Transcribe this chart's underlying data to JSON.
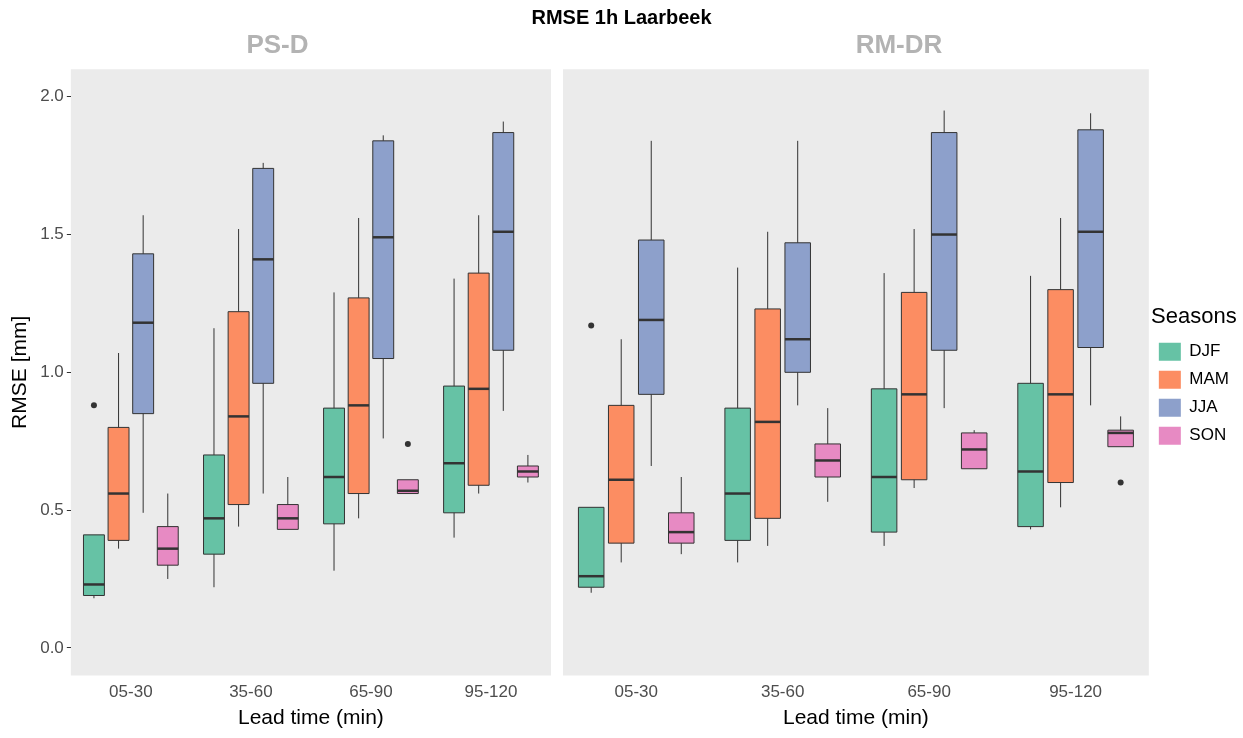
{
  "chart_data": [
    {
      "type": "box",
      "subtitle": "PS-D",
      "xlabel": "Lead time (min)",
      "ylabel": "RMSE [mm]",
      "categories": [
        "05-30",
        "35-60",
        "65-90",
        "95-120"
      ],
      "ylim": [
        -0.1,
        2.1
      ],
      "yticks": [
        {
          "value": 0,
          "label": "0.0"
        },
        {
          "value": 0.5,
          "label": "0.5"
        },
        {
          "value": 1,
          "label": "1.0"
        },
        {
          "value": 1.5,
          "label": "1.5"
        },
        {
          "value": 2,
          "label": "2.0"
        }
      ],
      "grid": false,
      "legend": false,
      "series": [
        {
          "color": "#66c2a5",
          "boxes": [
            {
              "low": 0.18,
              "q1": 0.19,
              "median": 0.23,
              "q3": 0.41,
              "high": 0.41,
              "outliers": [
                0.88
              ]
            },
            {
              "low": 0.22,
              "q1": 0.34,
              "median": 0.47,
              "q3": 0.7,
              "high": 1.16
            },
            {
              "low": 0.28,
              "q1": 0.45,
              "median": 0.62,
              "q3": 0.87,
              "high": 1.29
            },
            {
              "low": 0.4,
              "q1": 0.49,
              "median": 0.67,
              "q3": 0.95,
              "high": 1.34
            }
          ]
        },
        {
          "color": "#fc8d62",
          "boxes": [
            {
              "low": 0.36,
              "q1": 0.39,
              "median": 0.56,
              "q3": 0.8,
              "high": 1.07
            },
            {
              "low": 0.44,
              "q1": 0.52,
              "median": 0.84,
              "q3": 1.22,
              "high": 1.52
            },
            {
              "low": 0.47,
              "q1": 0.56,
              "median": 0.88,
              "q3": 1.27,
              "high": 1.56
            },
            {
              "low": 0.56,
              "q1": 0.59,
              "median": 0.94,
              "q3": 1.36,
              "high": 1.57
            }
          ]
        },
        {
          "color": "#8da0cb",
          "boxes": [
            {
              "low": 0.49,
              "q1": 0.85,
              "median": 1.18,
              "q3": 1.43,
              "high": 1.57
            },
            {
              "low": 0.56,
              "q1": 0.96,
              "median": 1.41,
              "q3": 1.74,
              "high": 1.76
            },
            {
              "low": 0.76,
              "q1": 1.05,
              "median": 1.49,
              "q3": 1.84,
              "high": 1.86
            },
            {
              "low": 0.86,
              "q1": 1.08,
              "median": 1.51,
              "q3": 1.87,
              "high": 1.91
            }
          ]
        },
        {
          "color": "#e78ac3",
          "boxes": [
            {
              "low": 0.25,
              "q1": 0.3,
              "median": 0.36,
              "q3": 0.44,
              "high": 0.56
            },
            {
              "low": 0.43,
              "q1": 0.43,
              "median": 0.47,
              "q3": 0.52,
              "high": 0.62
            },
            {
              "low": 0.56,
              "q1": 0.56,
              "median": 0.57,
              "q3": 0.61,
              "high": 0.61,
              "outliers": [
                0.74
              ]
            },
            {
              "low": 0.6,
              "q1": 0.62,
              "median": 0.64,
              "q3": 0.66,
              "high": 0.7
            }
          ]
        }
      ]
    },
    {
      "type": "box",
      "title": "RMSE 1h Laarbeek",
      "subtitle": "RM-DR",
      "xlabel": "Lead time (min)",
      "categories": [
        "05-30",
        "35-60",
        "65-90",
        "95-120"
      ],
      "ylim": [
        -0.1,
        2.1
      ],
      "tick_labels": "x",
      "grid": false,
      "legend": "right",
      "legend_title": "Seasons",
      "series": [
        {
          "name": "DJF",
          "color": "#66c2a5",
          "boxes": [
            {
              "low": 0.2,
              "q1": 0.22,
              "median": 0.26,
              "q3": 0.51,
              "high": 0.51,
              "outliers": [
                1.17
              ]
            },
            {
              "low": 0.31,
              "q1": 0.39,
              "median": 0.56,
              "q3": 0.87,
              "high": 1.38
            },
            {
              "low": 0.37,
              "q1": 0.42,
              "median": 0.62,
              "q3": 0.94,
              "high": 1.36
            },
            {
              "low": 0.43,
              "q1": 0.44,
              "median": 0.64,
              "q3": 0.96,
              "high": 1.35
            }
          ]
        },
        {
          "name": "MAM",
          "color": "#fc8d62",
          "boxes": [
            {
              "low": 0.31,
              "q1": 0.38,
              "median": 0.61,
              "q3": 0.88,
              "high": 1.12
            },
            {
              "low": 0.37,
              "q1": 0.47,
              "median": 0.82,
              "q3": 1.23,
              "high": 1.51
            },
            {
              "low": 0.58,
              "q1": 0.61,
              "median": 0.92,
              "q3": 1.29,
              "high": 1.52
            },
            {
              "low": 0.51,
              "q1": 0.6,
              "median": 0.92,
              "q3": 1.3,
              "high": 1.56
            }
          ]
        },
        {
          "name": "JJA",
          "color": "#8da0cb",
          "boxes": [
            {
              "low": 0.66,
              "q1": 0.92,
              "median": 1.19,
              "q3": 1.48,
              "high": 1.84
            },
            {
              "low": 0.88,
              "q1": 1.0,
              "median": 1.12,
              "q3": 1.47,
              "high": 1.84
            },
            {
              "low": 0.87,
              "q1": 1.08,
              "median": 1.5,
              "q3": 1.87,
              "high": 1.95
            },
            {
              "low": 0.88,
              "q1": 1.09,
              "median": 1.51,
              "q3": 1.88,
              "high": 1.94
            }
          ]
        },
        {
          "name": "SON",
          "color": "#e78ac3",
          "boxes": [
            {
              "low": 0.34,
              "q1": 0.38,
              "median": 0.42,
              "q3": 0.49,
              "high": 0.62
            },
            {
              "low": 0.53,
              "q1": 0.62,
              "median": 0.68,
              "q3": 0.74,
              "high": 0.87
            },
            {
              "low": 0.65,
              "q1": 0.65,
              "median": 0.72,
              "q3": 0.78,
              "high": 0.79
            },
            {
              "low": 0.73,
              "q1": 0.73,
              "median": 0.78,
              "q3": 0.79,
              "high": 0.84,
              "outliers": [
                0.6
              ]
            }
          ]
        }
      ]
    }
  ]
}
